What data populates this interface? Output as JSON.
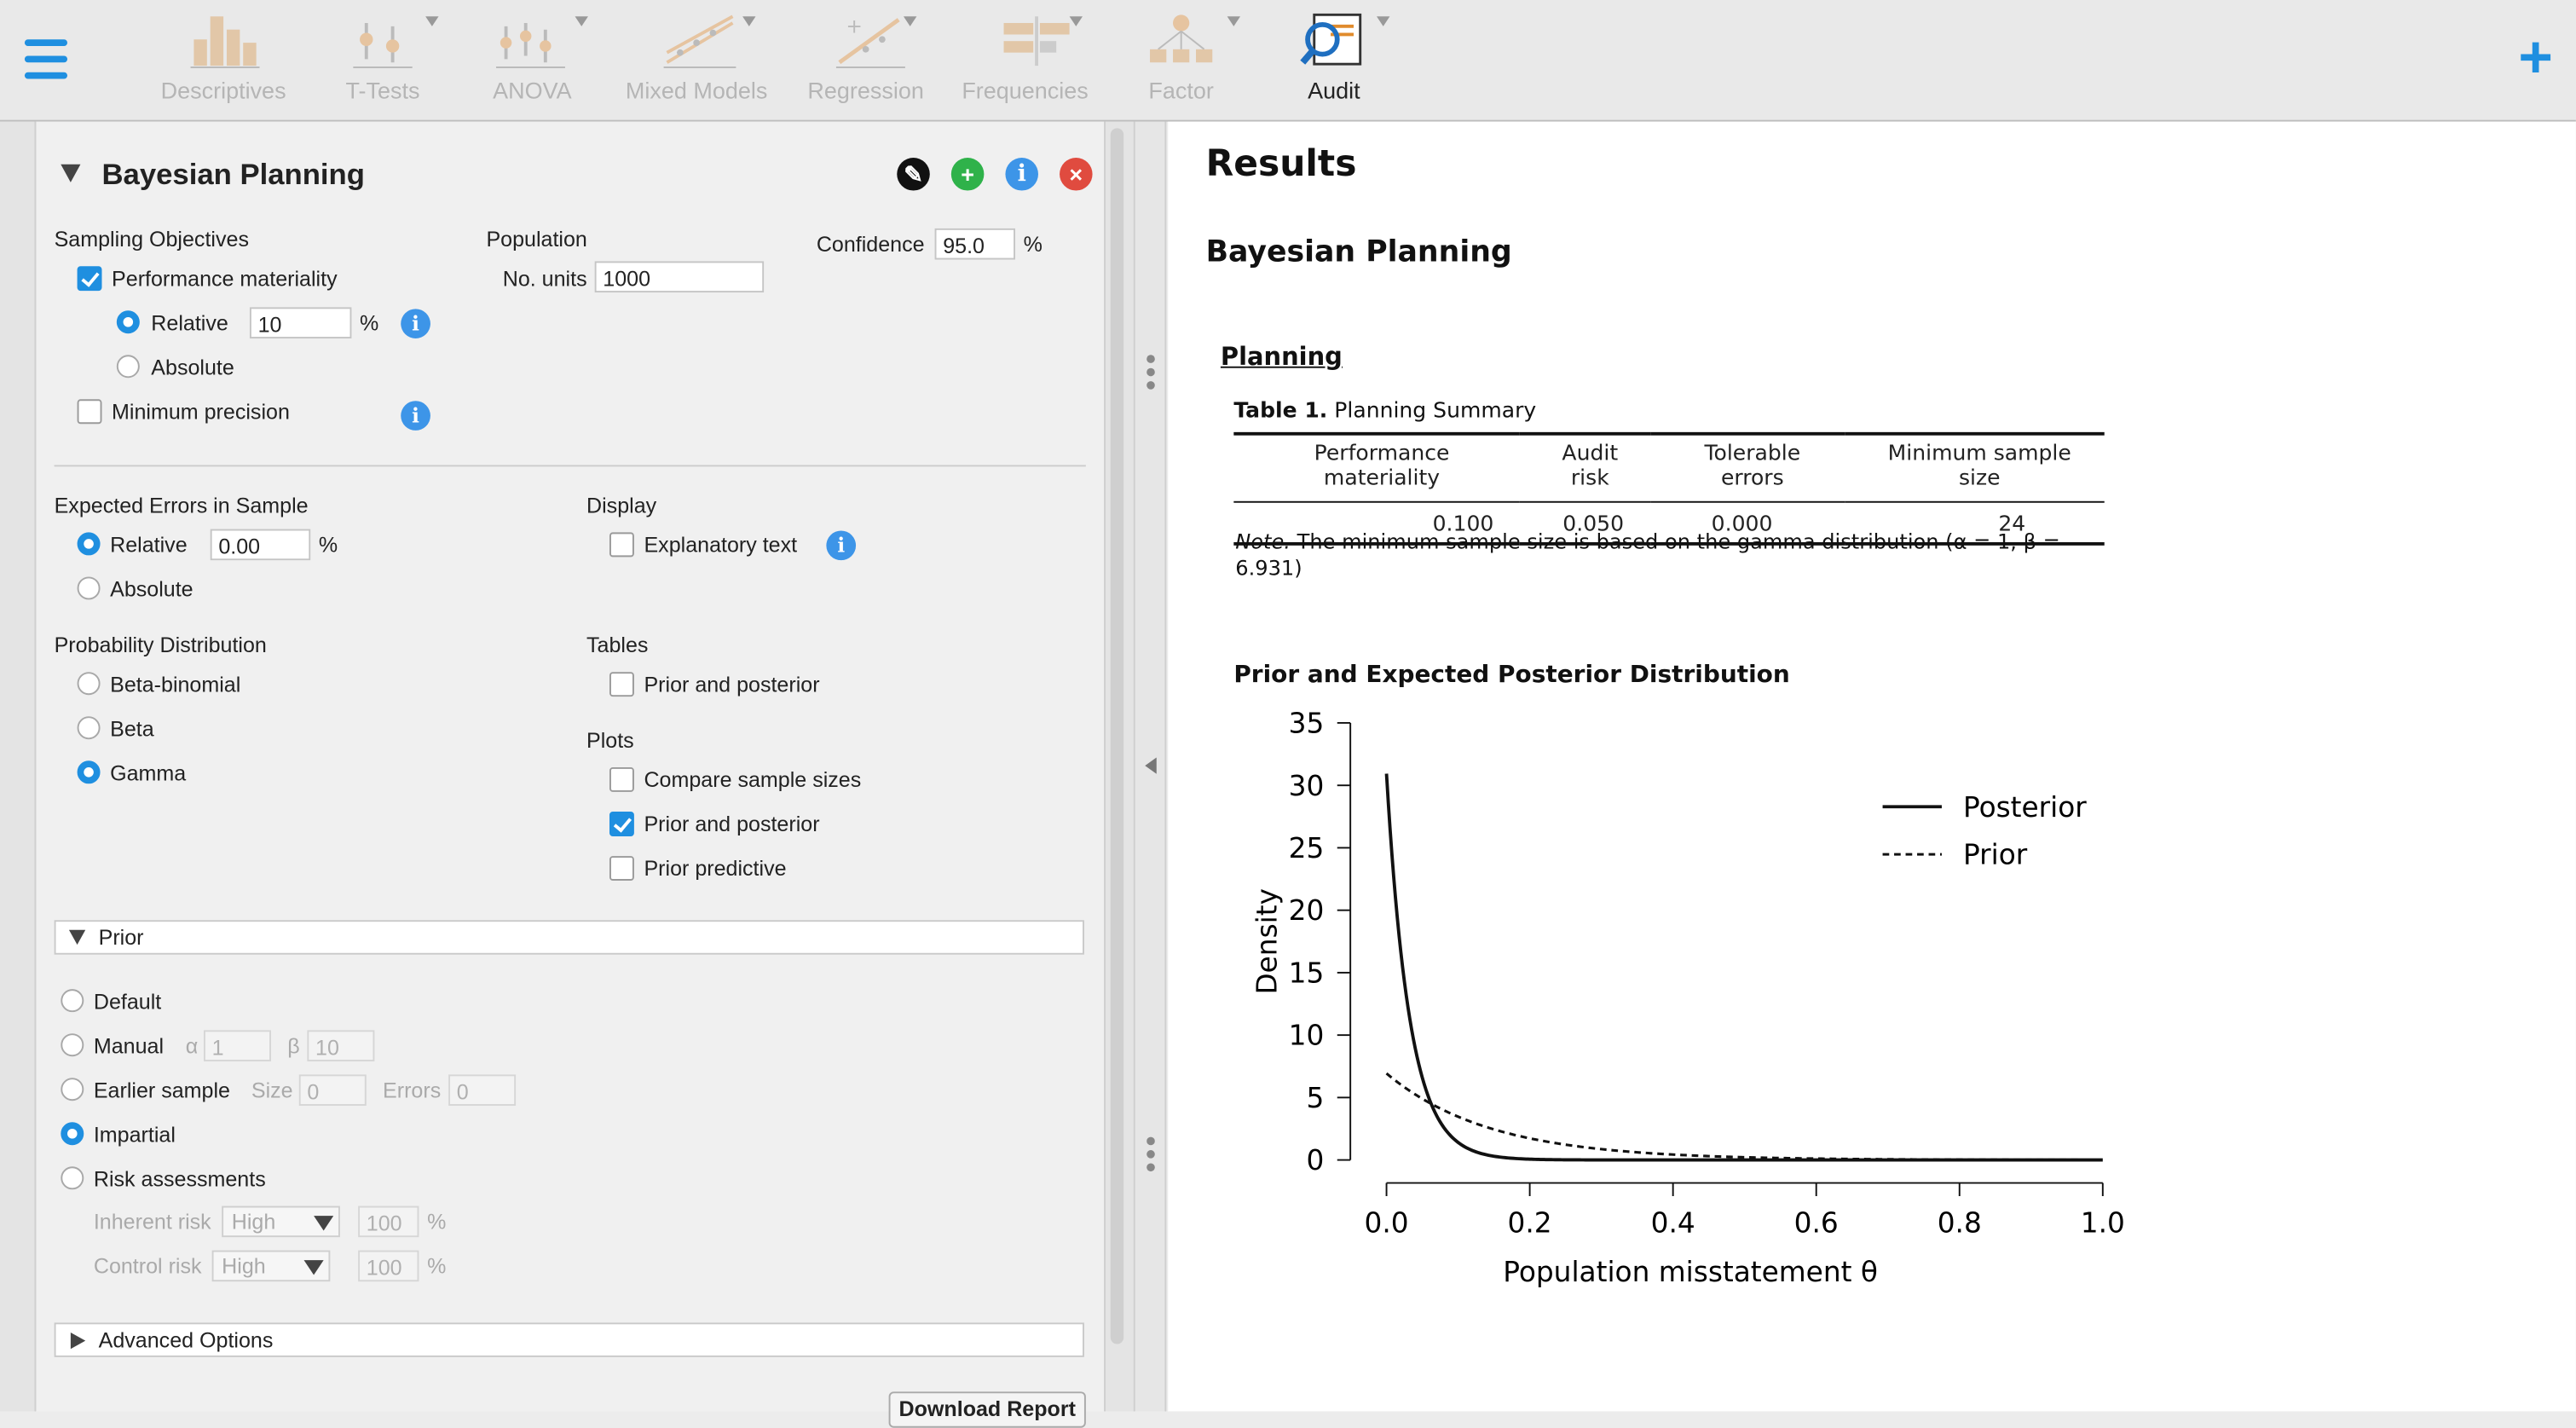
{
  "toolbar": {
    "tools": [
      {
        "label": "Descriptives",
        "icon": "bar-chart-icon",
        "active": false
      },
      {
        "label": "T-Tests",
        "icon": "t-test-icon",
        "active": false
      },
      {
        "label": "ANOVA",
        "icon": "anova-icon",
        "active": false
      },
      {
        "label": "Mixed Models",
        "icon": "mixed-models-icon",
        "active": false
      },
      {
        "label": "Regression",
        "icon": "regression-icon",
        "active": false
      },
      {
        "label": "Frequencies",
        "icon": "frequencies-icon",
        "active": false
      },
      {
        "label": "Factor",
        "icon": "factor-icon",
        "active": false
      },
      {
        "label": "Audit",
        "icon": "audit-magnifier-icon",
        "active": true
      }
    ],
    "accent": "#1f8fe0"
  },
  "panel": {
    "title": "Bayesian Planning",
    "sampling_objectives": {
      "heading": "Sampling Objectives",
      "performance_materiality": {
        "label": "Performance materiality",
        "checked": true
      },
      "relative": {
        "label": "Relative",
        "value": "10",
        "unit": "%",
        "selected": true
      },
      "absolute": {
        "label": "Absolute",
        "selected": false
      },
      "minimum_precision": {
        "label": "Minimum precision",
        "checked": false
      }
    },
    "population": {
      "heading": "Population",
      "units_label": "No. units",
      "units_value": "1000"
    },
    "confidence": {
      "label": "Confidence",
      "value": "95.0",
      "unit": "%"
    },
    "expected_errors": {
      "heading": "Expected Errors in Sample",
      "relative": {
        "label": "Relative",
        "value": "0.00",
        "unit": "%",
        "selected": true
      },
      "absolute": {
        "label": "Absolute",
        "selected": false
      }
    },
    "display": {
      "heading": "Display",
      "explanatory_text": {
        "label": "Explanatory text",
        "checked": false
      }
    },
    "probability_distribution": {
      "heading": "Probability Distribution",
      "options": [
        {
          "label": "Beta-binomial",
          "selected": false
        },
        {
          "label": "Beta",
          "selected": false
        },
        {
          "label": "Gamma",
          "selected": true
        }
      ]
    },
    "tables": {
      "heading": "Tables",
      "prior_and_posterior": {
        "label": "Prior and posterior",
        "checked": false
      }
    },
    "plots": {
      "heading": "Plots",
      "items": [
        {
          "label": "Compare sample sizes",
          "checked": false
        },
        {
          "label": "Prior and posterior",
          "checked": true
        },
        {
          "label": "Prior predictive",
          "checked": false
        }
      ]
    },
    "prior_section": {
      "title": "Prior",
      "default": {
        "label": "Default",
        "selected": false
      },
      "manual": {
        "label": "Manual",
        "alpha_symbol": "α",
        "alpha": "1",
        "beta_symbol": "β",
        "beta": "10",
        "selected": false
      },
      "earlier_sample": {
        "label": "Earlier sample",
        "size_label": "Size",
        "size": "0",
        "errors_label": "Errors",
        "errors": "0",
        "selected": false
      },
      "impartial": {
        "label": "Impartial",
        "selected": true
      },
      "risk_assessments": {
        "label": "Risk assessments",
        "selected": false
      },
      "inherent_risk": {
        "label": "Inherent risk",
        "value": "High",
        "pct": "100",
        "unit": "%"
      },
      "control_risk": {
        "label": "Control risk",
        "value": "High",
        "pct": "100",
        "unit": "%"
      }
    },
    "advanced_options": {
      "title": "Advanced Options"
    },
    "download_report": "Download Report"
  },
  "results": {
    "heading": "Results",
    "analysis_title": "Bayesian Planning",
    "planning_label": "Planning",
    "table": {
      "caption_bold": "Table 1.",
      "caption": "Planning Summary",
      "headers": [
        "Performance materiality",
        "Audit risk",
        "Tolerable errors",
        "Minimum sample size"
      ],
      "row": [
        "0.100",
        "0.050",
        "0.000",
        "24"
      ],
      "note_label": "Note.",
      "note_line1": "The minimum sample size is based on the gamma distribution (α = 1, β =",
      "note_line2": "6.931)"
    },
    "plot_title": "Prior and Expected Posterior Distribution"
  },
  "chart_data": {
    "type": "line",
    "title": "Prior and Expected Posterior Distribution",
    "xlabel": "Population misstatement θ",
    "ylabel": "Density",
    "xlim": [
      0,
      1
    ],
    "ylim": [
      0,
      35
    ],
    "xticks": [
      "0.0",
      "0.2",
      "0.4",
      "0.6",
      "0.8",
      "1.0"
    ],
    "yticks": [
      "0",
      "5",
      "10",
      "15",
      "20",
      "25",
      "30",
      "35"
    ],
    "legend_position": "top-right",
    "series": [
      {
        "name": "Posterior",
        "style": "solid",
        "distribution": "gamma",
        "shape": 1,
        "rate": 30.931
      },
      {
        "name": "Prior",
        "style": "dashed",
        "distribution": "gamma",
        "shape": 1,
        "rate": 6.931
      }
    ],
    "grid": false
  }
}
